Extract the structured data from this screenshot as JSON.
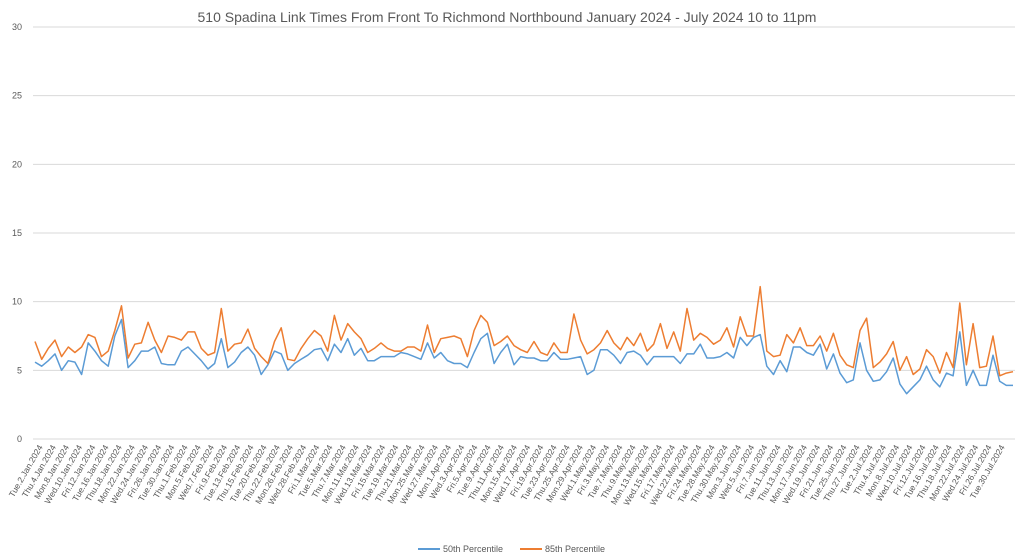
{
  "chart_data": {
    "type": "line",
    "title": "510 Spadina Link Times From Front To Richmond Northbound January 2024 - July 2024 10 to 11pm",
    "xlabel": "",
    "ylabel": "",
    "ylim": [
      0,
      30
    ],
    "yticks": [
      0,
      5,
      10,
      15,
      20,
      25,
      30
    ],
    "grid": true,
    "legend": "bottom",
    "colors": {
      "s50": "#5b9bd5",
      "s85": "#ed7d31",
      "grid": "#d9d9d9",
      "text": "#595959"
    },
    "x_labels": [
      "Tue.2.Jan.2024",
      "Thu.4.Jan.2024",
      "Mon.8.Jan.2024",
      "Wed.10.Jan.2024",
      "Fri.12.Jan.2024",
      "Tue.16.Jan.2024",
      "Thu.18.Jan.2024",
      "Mon.22.Jan.2024",
      "Wed.24.Jan.2024",
      "Fri.26.Jan.2024",
      "Tue.30.Jan.2024",
      "Thu.1.Feb.2024",
      "Mon.5.Feb.2024",
      "Wed.7.Feb.2024",
      "Fri.9.Feb.2024",
      "Tue.13.Feb.2024",
      "Thu.15.Feb.2024",
      "Tue.20.Feb.2024",
      "Thu.22.Feb.2024",
      "Mon.26.Feb.2024",
      "Wed.28.Feb.2024",
      "Fri.1.Mar.2024",
      "Tue.5.Mar.2024",
      "Thu.7.Mar.2024",
      "Mon.11.Mar.2024",
      "Wed.13.Mar.2024",
      "Fri.15.Mar.2024",
      "Tue.19.Mar.2024",
      "Thu.21.Mar.2024",
      "Mon.25.Mar.2024",
      "Wed.27.Mar.2024",
      "Mon.1.Apr.2024",
      "Wed.3.Apr.2024",
      "Fri.5.Apr.2024",
      "Tue.9.Apr.2024",
      "Thu.11.Apr.2024",
      "Mon.15.Apr.2024",
      "Wed.17.Apr.2024",
      "Fri.19.Apr.2024",
      "Tue.23.Apr.2024",
      "Thu.25.Apr.2024",
      "Mon.29.Apr.2024",
      "Wed.1.May.2024",
      "Fri.3.May.2024",
      "Tue.7.May.2024",
      "Thu.9.May.2024",
      "Mon.13.May.2024",
      "Wed.15.May.2024",
      "Fri.17.May.2024",
      "Wed.22.May.2024",
      "Fri.24.May.2024",
      "Tue.28.May.2024",
      "Thu.30.May.2024",
      "Mon.3.Jun.2024",
      "Wed.5.Jun.2024",
      "Fri.7.Jun.2024",
      "Tue.11.Jun.2024",
      "Thu.13.Jun.2024",
      "Mon.17.Jun.2024",
      "Wed.19.Jun.2024",
      "Fri.21.Jun.2024",
      "Tue.25.Jun.2024",
      "Thu.27.Jun.2024",
      "Tue.2.Jul.2024",
      "Thu.4.Jul.2024",
      "Mon.8.Jul.2024",
      "Wed.10.Jul.2024",
      "Fri.12.Jul.2024",
      "Tue.16.Jul.2024",
      "Thu.18.Jul.2024",
      "Mon.22.Jul.2024",
      "Wed.24.Jul.2024",
      "Fri.26.Jul.2024",
      "Tue.30.Jul.2024"
    ],
    "series": [
      {
        "name": "50th Percentile",
        "values": [
          5.6,
          5.3,
          5.7,
          6.2,
          5.0,
          5.7,
          5.6,
          4.7,
          7.0,
          6.4,
          5.7,
          5.3,
          7.5,
          8.7,
          5.2,
          5.7,
          6.4,
          6.4,
          6.7,
          5.5,
          5.4,
          5.4,
          6.4,
          6.7,
          6.2,
          5.7,
          5.1,
          5.5,
          7.3,
          5.2,
          5.6,
          6.3,
          6.7,
          6.1,
          4.7,
          5.4,
          6.4,
          6.2,
          5.0,
          5.5,
          5.8,
          6.1,
          6.5,
          6.6,
          5.7,
          6.9,
          6.3,
          7.3,
          6.1,
          6.6,
          5.7,
          5.7,
          6.0,
          6.0,
          6.0,
          6.3,
          6.2,
          6.0,
          5.8,
          7.0,
          5.9,
          6.3,
          5.7,
          5.5,
          5.5,
          5.2,
          6.3,
          7.3,
          7.7,
          5.5,
          6.3,
          6.9,
          5.4,
          6.0,
          5.9,
          5.9,
          5.7,
          5.7,
          6.3,
          5.8,
          5.8,
          5.9,
          6.0,
          4.7,
          5.0,
          6.5,
          6.5,
          6.1,
          5.5,
          6.3,
          6.4,
          6.1,
          5.4,
          6.0,
          6.0,
          6.0,
          6.0,
          5.5,
          6.2,
          6.2,
          6.9,
          5.9,
          5.9,
          6.0,
          6.3,
          5.9,
          7.4,
          6.8,
          7.4,
          7.6,
          5.3,
          4.7,
          5.7,
          4.9,
          6.7,
          6.7,
          6.3,
          6.1,
          6.9,
          5.1,
          6.2,
          4.8,
          4.1,
          4.3,
          7.0,
          5.0,
          4.2,
          4.3,
          4.9,
          5.9,
          4.0,
          3.3,
          3.8,
          4.3,
          5.3,
          4.3,
          3.8,
          4.8,
          4.6,
          7.8,
          3.9,
          5.0,
          3.9,
          3.9,
          6.1,
          4.2,
          3.9,
          3.9
        ]
      },
      {
        "name": "85th Percentile",
        "values": [
          7.1,
          5.8,
          6.6,
          7.2,
          6.0,
          6.7,
          6.3,
          6.7,
          7.6,
          7.4,
          6.0,
          6.4,
          7.9,
          9.7,
          5.9,
          6.9,
          7.0,
          8.5,
          7.2,
          6.3,
          7.5,
          7.4,
          7.2,
          7.8,
          7.8,
          6.6,
          6.1,
          6.3,
          9.5,
          6.4,
          6.9,
          7.0,
          8.0,
          6.6,
          6.0,
          5.5,
          7.1,
          8.1,
          5.8,
          5.7,
          6.6,
          7.3,
          7.9,
          7.5,
          6.4,
          9.0,
          7.2,
          8.4,
          7.8,
          7.3,
          6.3,
          6.6,
          7.0,
          6.6,
          6.4,
          6.4,
          6.7,
          6.7,
          6.4,
          8.3,
          6.3,
          7.3,
          7.4,
          7.5,
          7.3,
          6.0,
          7.9,
          9.0,
          8.5,
          6.8,
          7.1,
          7.5,
          6.8,
          6.5,
          6.3,
          7.1,
          6.3,
          6.1,
          7.0,
          6.3,
          6.3,
          9.1,
          7.2,
          6.2,
          6.5,
          7.0,
          7.9,
          7.0,
          6.5,
          7.4,
          6.8,
          7.7,
          6.4,
          6.9,
          8.4,
          6.6,
          7.8,
          6.4,
          9.5,
          7.2,
          7.7,
          7.4,
          6.9,
          7.2,
          8.1,
          6.7,
          8.9,
          7.5,
          7.5,
          11.1,
          6.4,
          6.0,
          6.1,
          7.6,
          7.0,
          8.1,
          6.8,
          6.8,
          7.5,
          6.4,
          7.7,
          6.1,
          5.4,
          5.2,
          7.9,
          8.8,
          5.2,
          5.6,
          6.2,
          7.1,
          5.0,
          6.0,
          4.7,
          5.1,
          6.5,
          6.0,
          4.8,
          6.3,
          5.2,
          9.9,
          5.4,
          8.4,
          5.2,
          5.3,
          7.5,
          4.6,
          4.8,
          4.9
        ]
      }
    ]
  }
}
